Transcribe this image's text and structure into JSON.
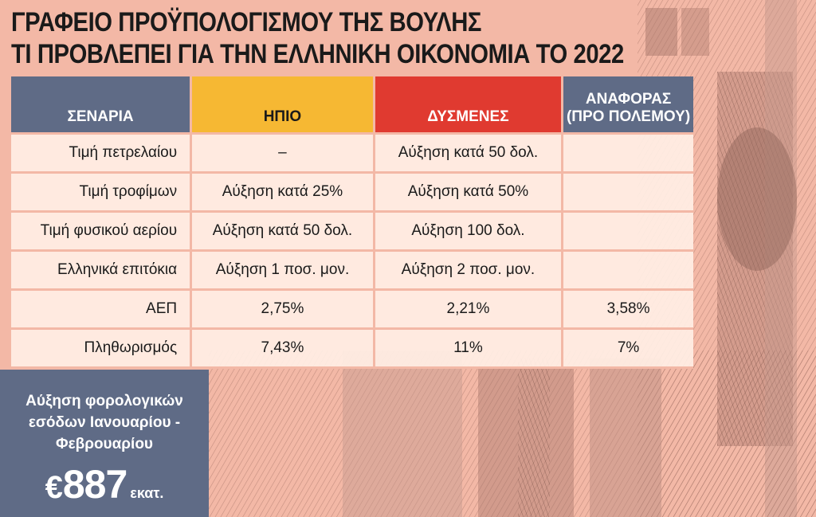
{
  "title": {
    "line1": "ΓΡΑΦΕΙΟ ΠΡΟΫΠΟΛΟΓΙΣΜΟΥ ΤΗΣ ΒΟΥΛΗΣ",
    "line2": "ΤΙ ΠΡΟΒΛΕΠΕΙ ΓΙΑ ΤΗΝ ΕΛΛΗΝΙΚΗ ΟΙΚΟΝΟΜΙΑ ΤΟ 2022"
  },
  "table": {
    "headers": {
      "scenarios": "ΣΕΝΑΡΙΑ",
      "mild": "ΗΠΙΟ",
      "adverse": "ΔΥΣΜΕΝΕΣ",
      "reference_line1": "ΑΝΑΦΟΡΑΣ",
      "reference_line2": "(ΠΡΟ ΠΟΛΕΜΟΥ)"
    },
    "rows": [
      {
        "label": "Τιμή πετρελαίου",
        "mild": "–",
        "adverse": "Αύξηση κατά 50 δολ.",
        "reference": ""
      },
      {
        "label": "Τιμή τροφίμων",
        "mild": "Αύξηση κατά 25%",
        "adverse": "Αύξηση κατά 50%",
        "reference": ""
      },
      {
        "label": "Τιμή φυσικού αερίου",
        "mild": "Αύξηση κατά 50 δολ.",
        "adverse": "Αύξηση 100 δολ.",
        "reference": ""
      },
      {
        "label": "Ελληνικά επιτόκια",
        "mild": "Αύξηση 1 ποσ. μον.",
        "adverse": "Αύξηση 2 ποσ. μον.",
        "reference": ""
      },
      {
        "label": "ΑΕΠ",
        "mild": "2,75%",
        "adverse": "2,21%",
        "reference": "3,58%"
      },
      {
        "label": "Πληθωρισμός",
        "mild": "7,43%",
        "adverse": "11%",
        "reference": "7%"
      }
    ]
  },
  "tax_box": {
    "line1": "Αύξηση φορολογικών",
    "line2": "εσόδων Ιανουαρίου -",
    "line3": "Φεβρουαρίου",
    "currency": "€",
    "amount": "887",
    "unit": "εκατ."
  },
  "colors": {
    "background": "#f3b8a6",
    "slate": "#5f6b86",
    "mild": "#f6b833",
    "adverse": "#e03a30"
  }
}
